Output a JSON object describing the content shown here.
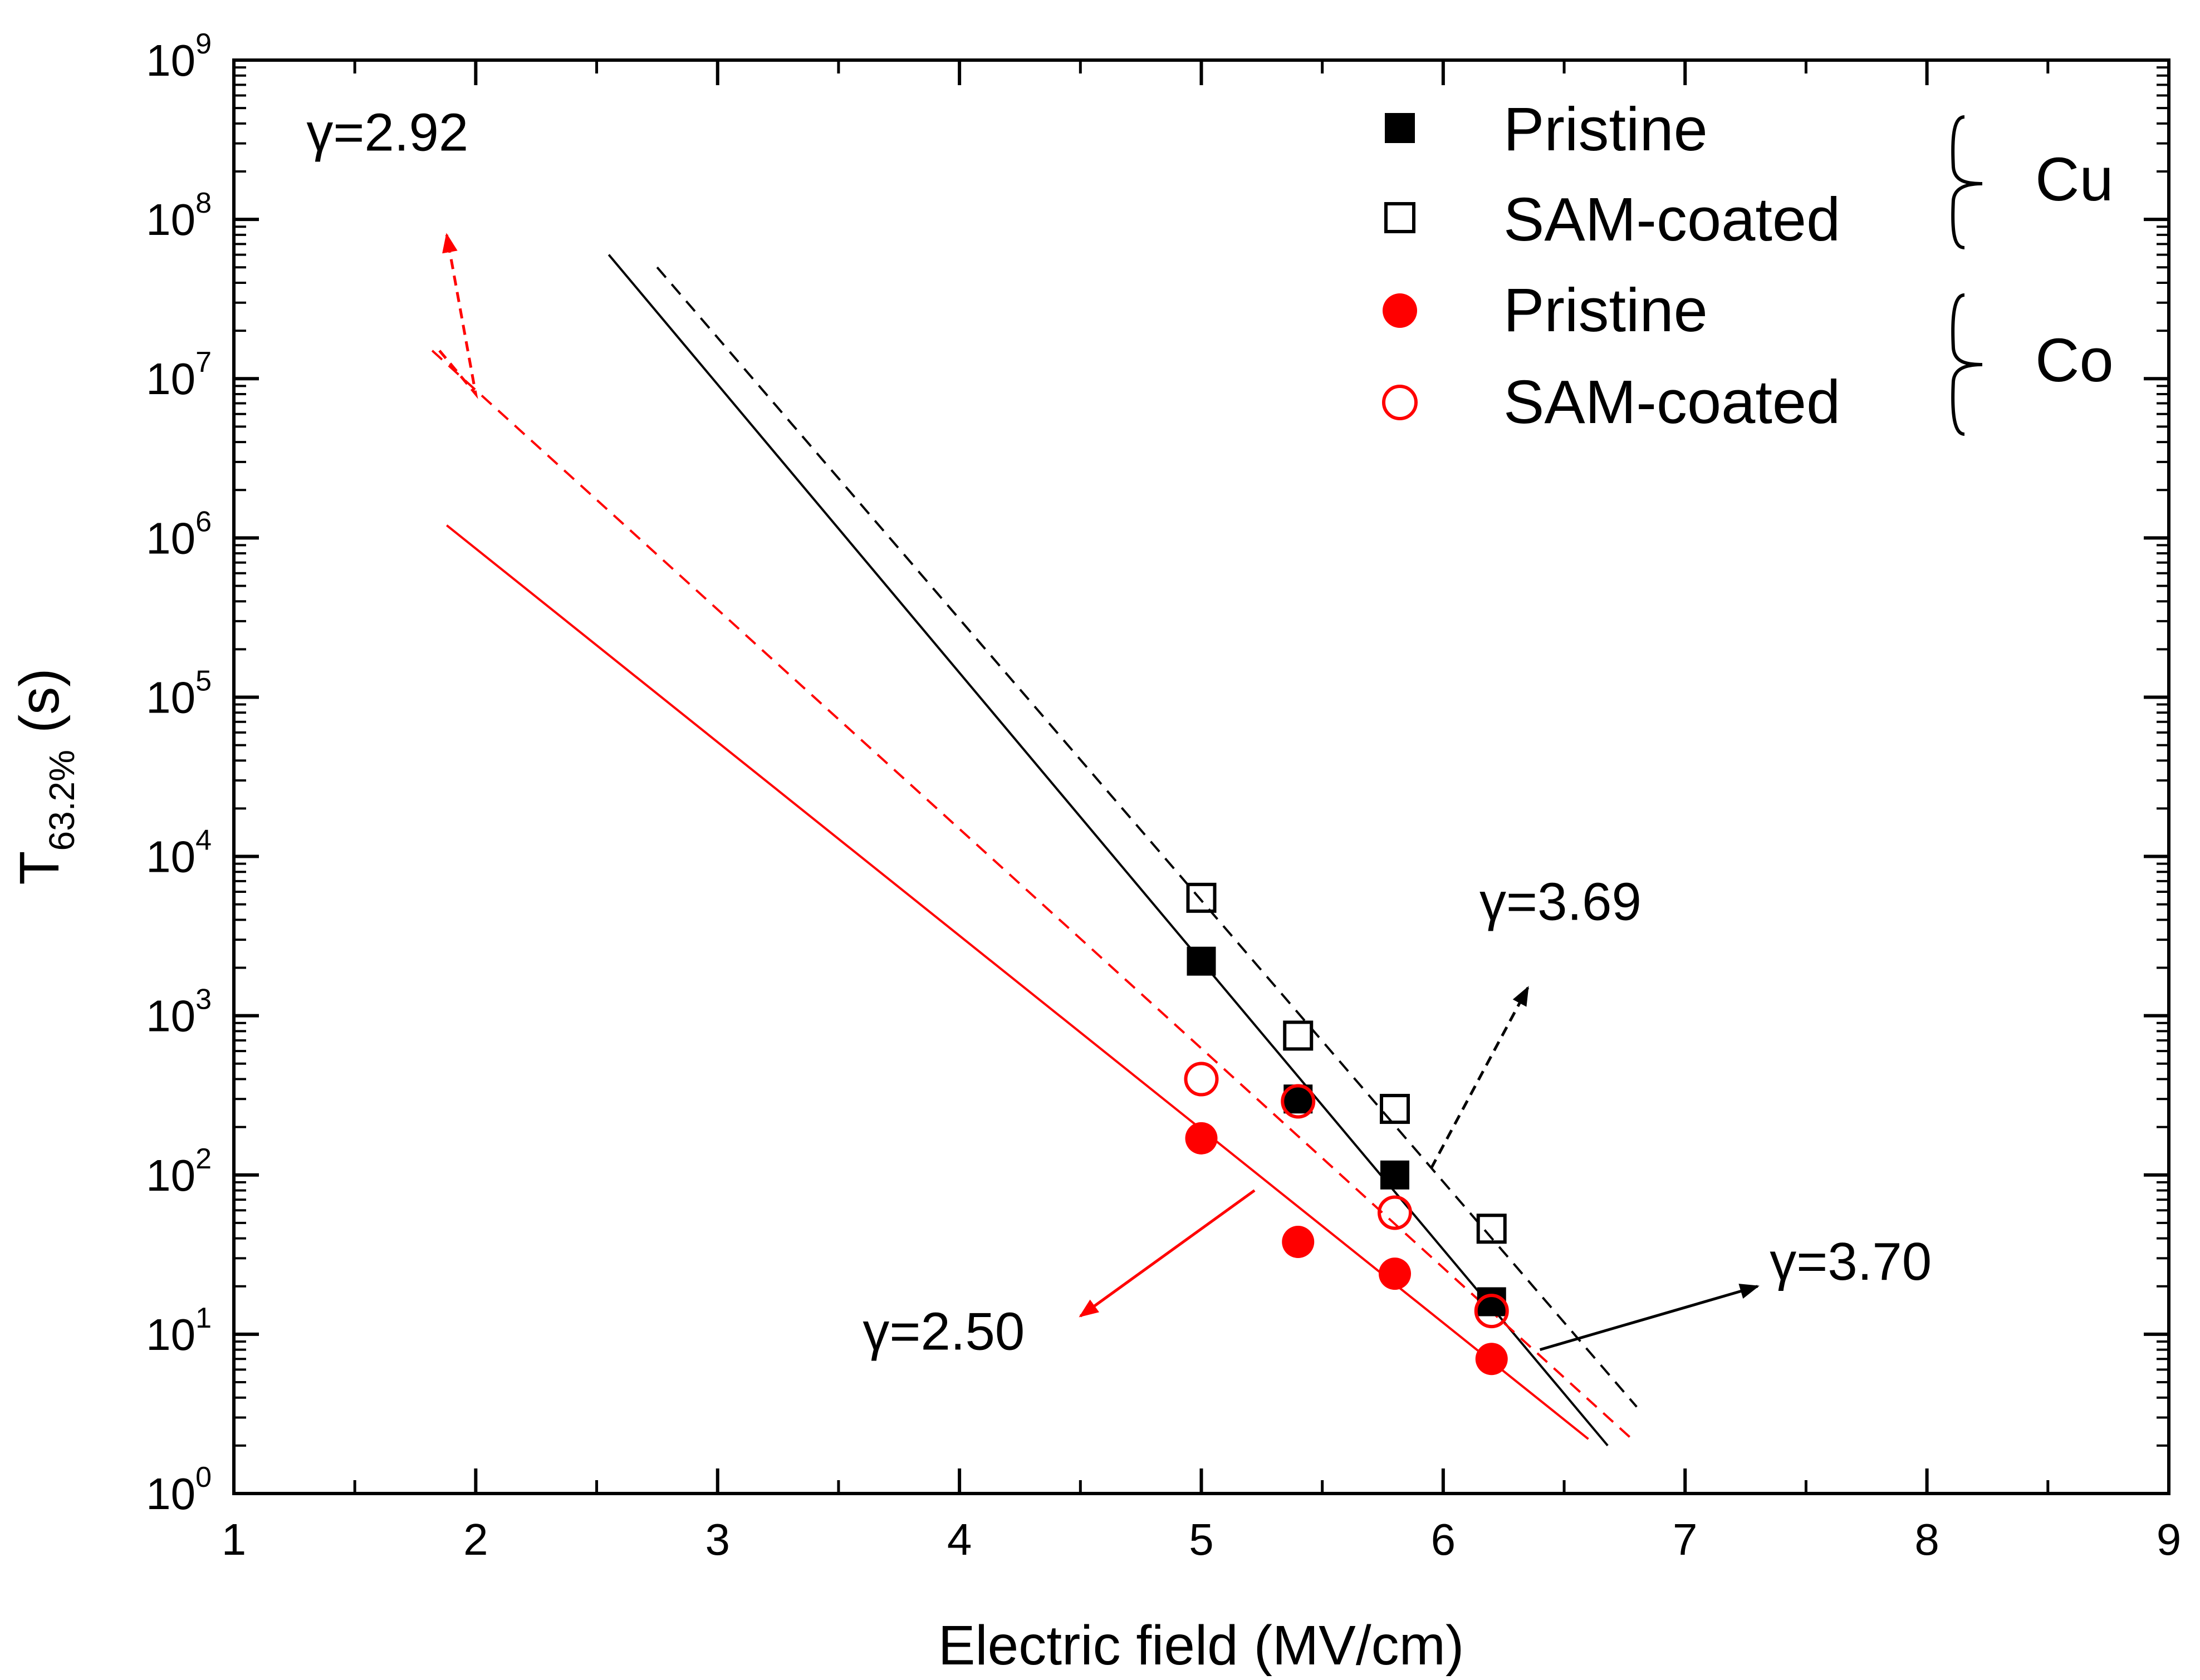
{
  "chart_data": {
    "type": "scatter",
    "title": "",
    "xlabel": "Electric field (MV/cm)",
    "ylabel_main": "T",
    "ylabel_sub": "63.2%",
    "ylabel_unit": "(s)",
    "xlim": [
      1,
      9
    ],
    "ylim_log10": [
      0,
      9
    ],
    "yscale": "log",
    "x_ticks": [
      "1",
      "2",
      "3",
      "4",
      "5",
      "6",
      "7",
      "8",
      "9"
    ],
    "y_ticks": [
      {
        "base": "10",
        "exp": "0"
      },
      {
        "base": "10",
        "exp": "1"
      },
      {
        "base": "10",
        "exp": "2"
      },
      {
        "base": "10",
        "exp": "3"
      },
      {
        "base": "10",
        "exp": "4"
      },
      {
        "base": "10",
        "exp": "5"
      },
      {
        "base": "10",
        "exp": "6"
      },
      {
        "base": "10",
        "exp": "7"
      },
      {
        "base": "10",
        "exp": "8"
      },
      {
        "base": "10",
        "exp": "9"
      }
    ],
    "series": [
      {
        "name": "Pristine",
        "group": "Cu",
        "marker": "filled-square",
        "color": "#000000",
        "x": [
          5.0,
          5.4,
          5.8,
          6.2
        ],
        "y": [
          2200,
          300,
          100,
          16
        ]
      },
      {
        "name": "SAM-coated",
        "group": "Cu",
        "marker": "open-square",
        "color": "#000000",
        "x": [
          5.0,
          5.4,
          5.8,
          6.2
        ],
        "y": [
          5500,
          750,
          260,
          46
        ]
      },
      {
        "name": "Pristine",
        "group": "Co",
        "marker": "filled-circle",
        "color": "#ff0000",
        "x": [
          5.0,
          5.4,
          5.8,
          6.2
        ],
        "y": [
          170,
          38,
          24,
          7
        ]
      },
      {
        "name": "SAM-coated",
        "group": "Co",
        "marker": "open-circle",
        "color": "#ff0000",
        "x": [
          5.0,
          5.4,
          5.8,
          6.2
        ],
        "y": [
          400,
          290,
          58,
          14
        ]
      }
    ],
    "fit_lines": [
      {
        "name": "Cu pristine fit",
        "color": "#000000",
        "dash": "solid",
        "x": [
          2.55,
          6.68
        ],
        "y": [
          60000000,
          2
        ]
      },
      {
        "name": "Cu SAM-coated fit",
        "color": "#000000",
        "dash": "dashed",
        "x": [
          2.75,
          6.8
        ],
        "y": [
          50000000,
          3.5
        ]
      },
      {
        "name": "Co pristine fit",
        "color": "#ff0000",
        "dash": "solid",
        "x": [
          1.88,
          6.6
        ],
        "y": [
          1200000,
          2.2
        ]
      },
      {
        "name": "Co SAM-coated fit",
        "color": "#ff0000",
        "dash": "dashed",
        "x": [
          1.82,
          6.78
        ],
        "y": [
          15000000,
          2.2
        ]
      }
    ],
    "legend": {
      "placement": "top-right",
      "groups": [
        {
          "label": "Cu",
          "entries": [
            "Pristine",
            "SAM-coated"
          ]
        },
        {
          "label": "Co",
          "entries": [
            "Pristine",
            "SAM-coated"
          ]
        }
      ]
    },
    "annotations": [
      {
        "text": "γ=2.92",
        "color": "#000000",
        "arrow_color": "#ff0000",
        "arrow_dash": "dashed",
        "arrow_path": [
          [
            1.85,
            15000000
          ],
          [
            2.0,
            8000000
          ],
          [
            1.88,
            80000000
          ]
        ],
        "label_x": 1.3,
        "label_y": 270000000
      },
      {
        "text": "γ=3.69",
        "color": "#000000",
        "arrow_color": "#000000",
        "arrow_dash": "dashed",
        "arrow_path": [
          [
            5.95,
            110
          ],
          [
            6.35,
            1500
          ]
        ],
        "label_x": 6.15,
        "label_y": 4000
      },
      {
        "text": "γ=2.50",
        "color": "#000000",
        "arrow_color": "#ff0000",
        "arrow_dash": "solid",
        "arrow_path": [
          [
            5.22,
            80
          ],
          [
            4.5,
            13
          ]
        ],
        "label_x": 3.6,
        "label_y": 8
      },
      {
        "text": "γ=3.70",
        "color": "#000000",
        "arrow_color": "#000000",
        "arrow_dash": "solid",
        "arrow_path": [
          [
            6.4,
            8
          ],
          [
            7.3,
            20
          ]
        ],
        "label_x": 7.35,
        "label_y": 22
      }
    ]
  }
}
